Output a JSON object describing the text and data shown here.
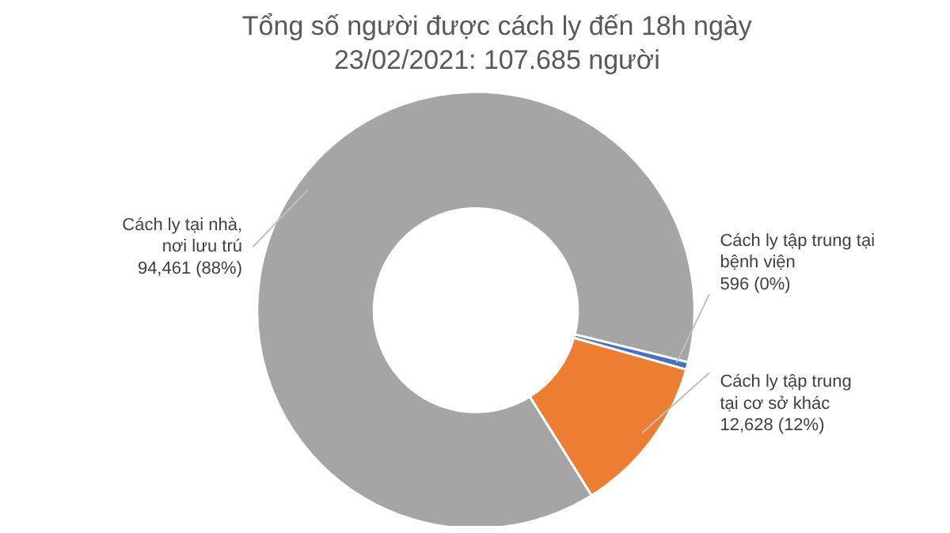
{
  "chart_data": {
    "type": "donut",
    "title": "Tổng số người được cách ly đến 18h ngày\n23/02/2021: 107.685 người",
    "categories": [
      "Cách ly tại nhà,\nnơi lưu trú",
      "Cách ly tập trung tại\nbệnh viện",
      "Cách ly tập trung\ntại cơ sở khác"
    ],
    "values": [
      94461,
      596,
      12628
    ],
    "colors": [
      "#a5a5a5",
      "#4472c4",
      "#ed7d31"
    ],
    "value_labels": [
      "94,461 (88%)",
      "596 (0%)",
      "12,628 (12%)"
    ]
  }
}
